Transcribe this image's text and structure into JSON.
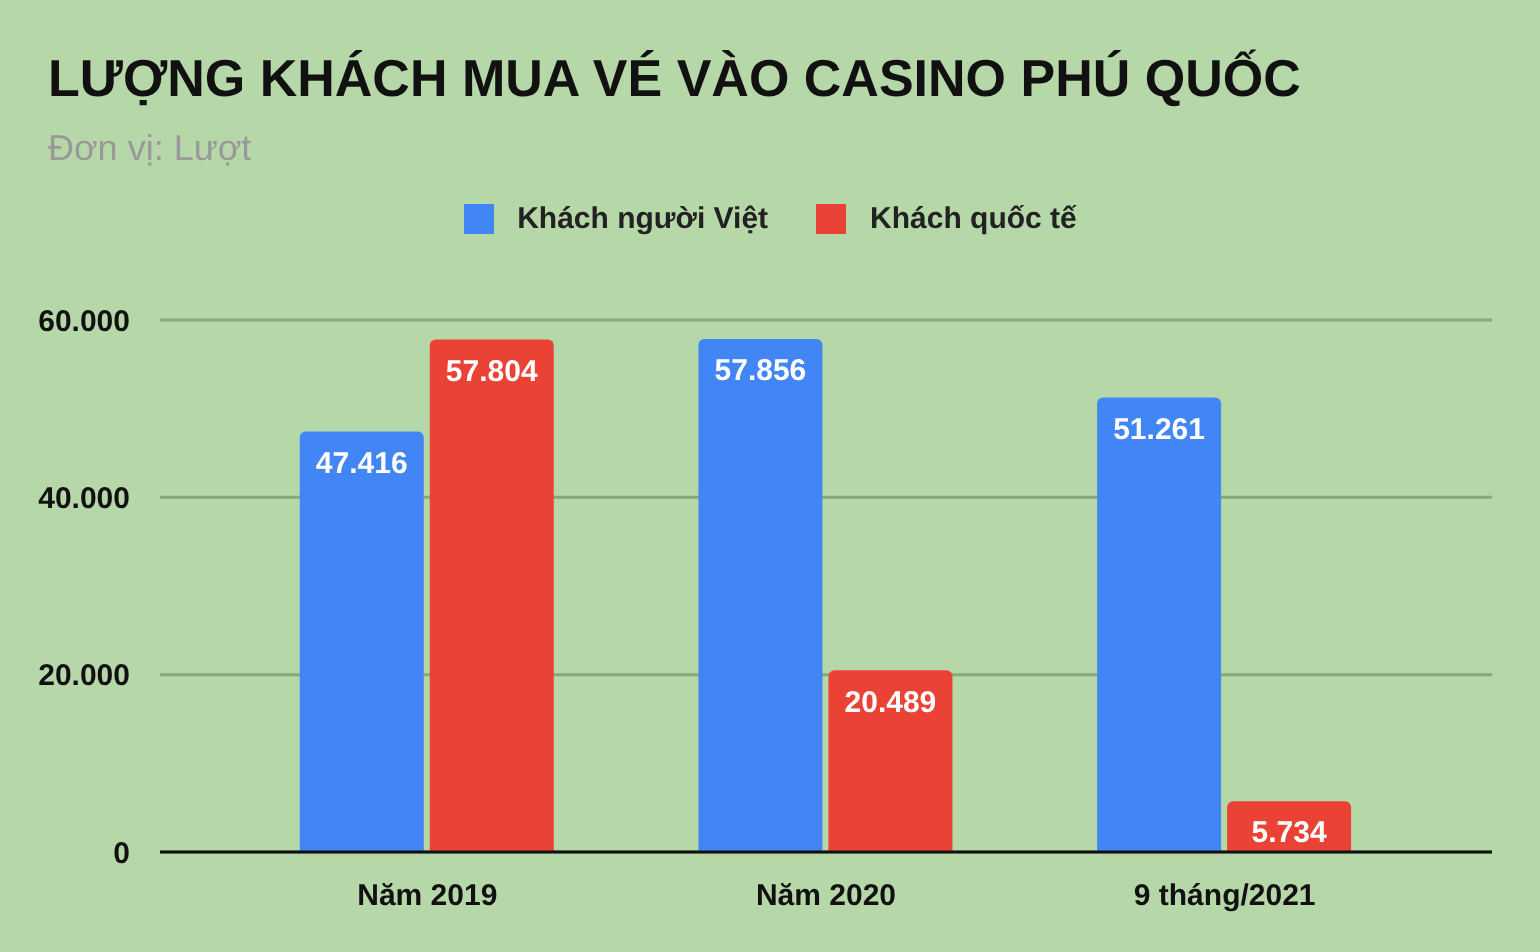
{
  "chart_data": {
    "type": "bar",
    "title": "LƯỢNG KHÁCH MUA VÉ VÀO CASINO PHÚ QUỐC",
    "subtitle": "Đơn vị: Lượt",
    "categories": [
      "Năm 2019",
      "Năm 2020",
      "9 tháng/2021"
    ],
    "series": [
      {
        "name": "Khách người Việt",
        "color": "#4285f4",
        "values": [
          47416,
          57856,
          51261
        ],
        "value_labels": [
          "47.416",
          "57.856",
          "51.261"
        ]
      },
      {
        "name": "Khách quốc tế",
        "color": "#ea4335",
        "values": [
          57804,
          20489,
          5734
        ],
        "value_labels": [
          "57.804",
          "20.489",
          "5.734"
        ]
      }
    ],
    "ylim": [
      0,
      60000
    ],
    "yticks": [
      {
        "value": 0,
        "label": "0"
      },
      {
        "value": 20000,
        "label": "20.000"
      },
      {
        "value": 40000,
        "label": "40.000"
      },
      {
        "value": 60000,
        "label": "60.000"
      }
    ],
    "grid": "y",
    "legend": "top"
  }
}
